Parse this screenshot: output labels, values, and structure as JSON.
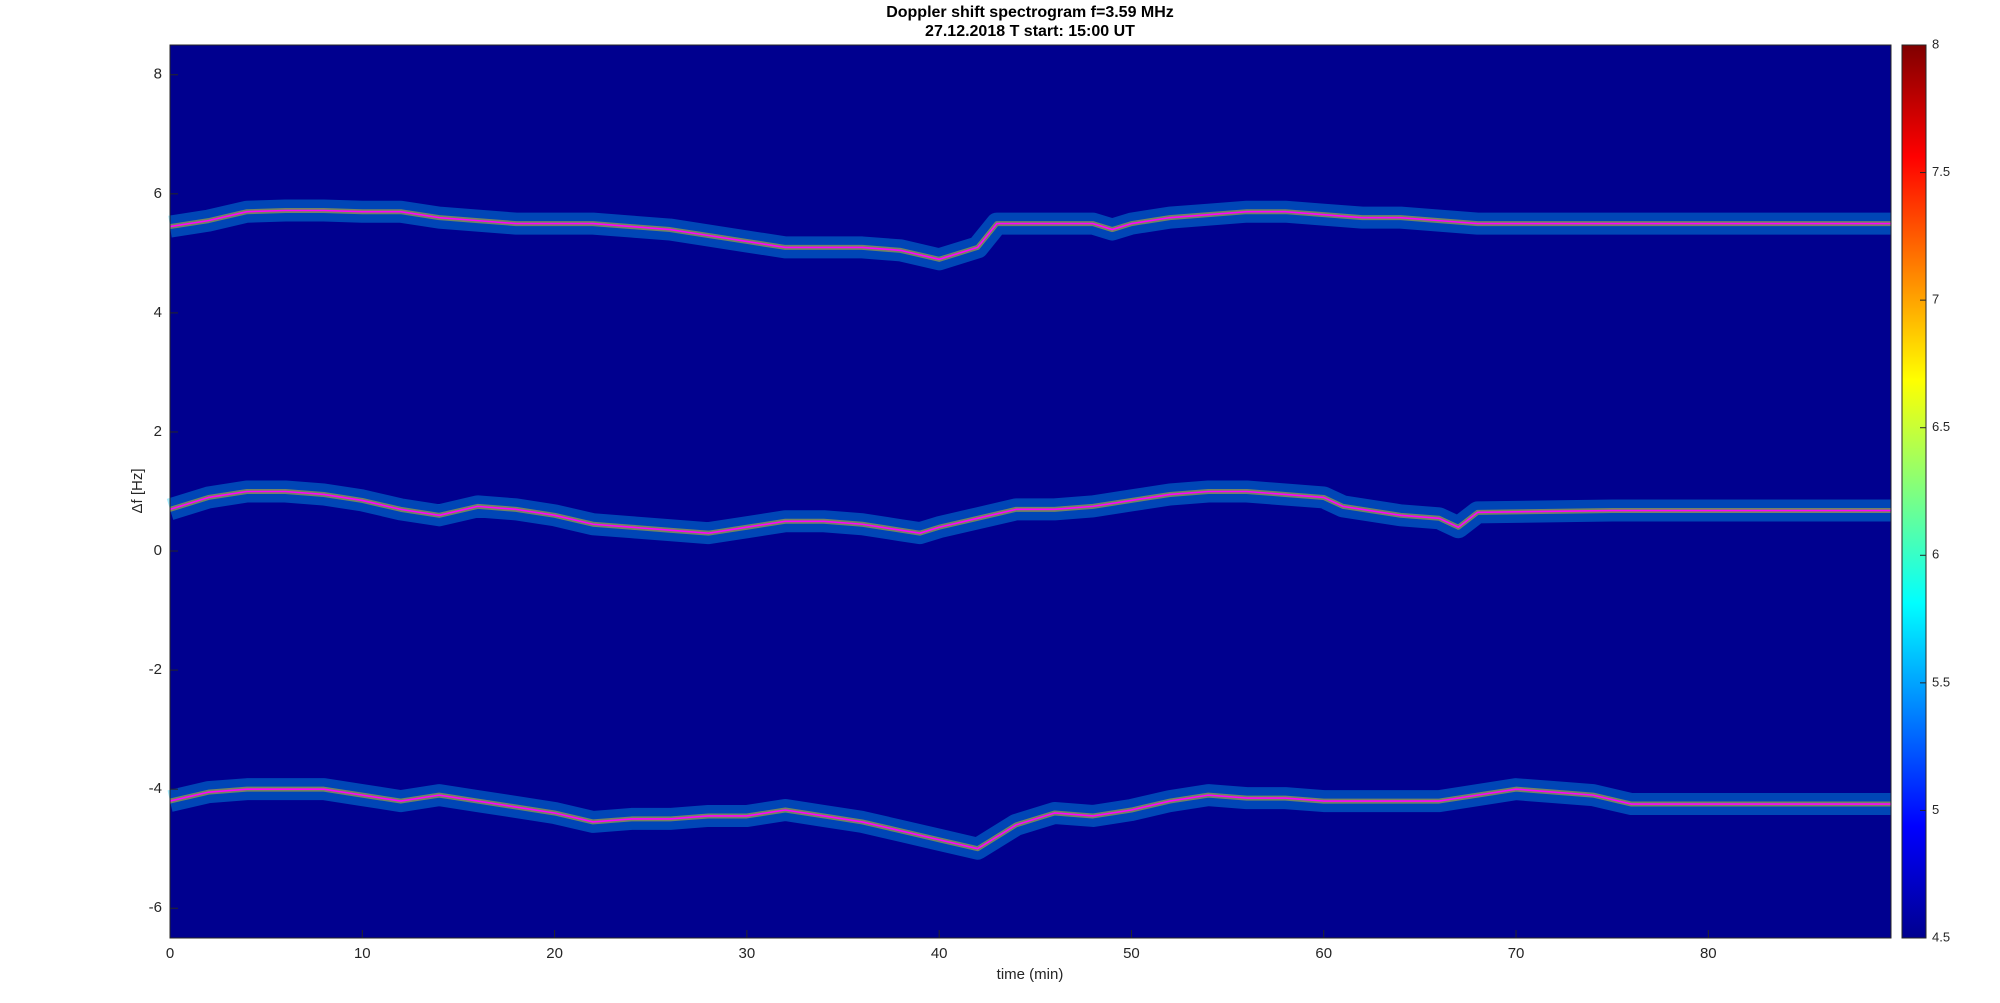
{
  "chart_data": {
    "type": "line",
    "title": "Doppler shift spectrogram f=3.59 MHz",
    "subtitle": "27.12.2018   T start: 15:00 UT",
    "x_label": "time (min)",
    "y_label": "Δf [Hz]",
    "xlim": [
      0,
      89.5
    ],
    "xticks": [
      0,
      10,
      20,
      30,
      40,
      50,
      60,
      70,
      80
    ],
    "ylim": [
      -6.5,
      8.5
    ],
    "yticks": [
      -6,
      -4,
      -2,
      0,
      2,
      4,
      6,
      8
    ],
    "background": "#00008f",
    "colorbar": {
      "lim": [
        4.5,
        8
      ],
      "ticks": [
        4.5,
        5,
        5.5,
        6,
        6.5,
        7,
        7.5,
        8
      ]
    },
    "series": [
      {
        "color": "#ff00ff",
        "x": [
          0,
          2,
          4,
          6,
          8,
          10,
          12,
          14,
          16,
          18,
          20,
          22,
          24,
          26,
          28,
          30,
          32,
          34,
          36,
          38,
          40,
          42,
          43,
          46,
          48,
          49,
          50,
          52,
          54,
          56,
          58,
          60,
          62,
          64,
          66,
          68,
          75,
          89.5
        ],
        "values": [
          5.45,
          5.55,
          5.7,
          5.72,
          5.72,
          5.7,
          5.7,
          5.6,
          5.55,
          5.5,
          5.5,
          5.5,
          5.45,
          5.4,
          5.3,
          5.2,
          5.1,
          5.1,
          5.1,
          5.05,
          4.9,
          5.1,
          5.5,
          5.5,
          5.5,
          5.4,
          5.5,
          5.6,
          5.65,
          5.7,
          5.7,
          5.65,
          5.6,
          5.6,
          5.55,
          5.5,
          5.5,
          5.5
        ]
      },
      {
        "color": "#ff00ff",
        "x": [
          0,
          2,
          4,
          6,
          8,
          10,
          12,
          14,
          16,
          18,
          20,
          22,
          24,
          26,
          28,
          30,
          32,
          34,
          36,
          38,
          39,
          40,
          42,
          44,
          46,
          48,
          50,
          52,
          54,
          56,
          58,
          60,
          61,
          64,
          66,
          67,
          68,
          75,
          89.5
        ],
        "values": [
          0.7,
          0.9,
          1.0,
          1.0,
          0.95,
          0.85,
          0.7,
          0.6,
          0.75,
          0.7,
          0.6,
          0.45,
          0.4,
          0.35,
          0.3,
          0.4,
          0.5,
          0.5,
          0.45,
          0.35,
          0.3,
          0.4,
          0.55,
          0.7,
          0.7,
          0.75,
          0.85,
          0.95,
          1.0,
          1.0,
          0.95,
          0.9,
          0.75,
          0.6,
          0.55,
          0.4,
          0.65,
          0.68,
          0.68
        ]
      },
      {
        "color": "#ff00ff",
        "x": [
          0,
          2,
          4,
          6,
          8,
          10,
          12,
          14,
          16,
          18,
          20,
          22,
          24,
          26,
          28,
          30,
          32,
          34,
          36,
          38,
          40,
          42,
          44,
          46,
          48,
          50,
          52,
          54,
          56,
          58,
          60,
          62,
          64,
          66,
          68,
          70,
          72,
          74,
          76,
          80,
          89.5
        ],
        "values": [
          -4.2,
          -4.05,
          -4.0,
          -4.0,
          -4.0,
          -4.1,
          -4.2,
          -4.1,
          -4.2,
          -4.3,
          -4.4,
          -4.55,
          -4.5,
          -4.5,
          -4.45,
          -4.45,
          -4.35,
          -4.45,
          -4.55,
          -4.7,
          -4.85,
          -5.0,
          -4.6,
          -4.4,
          -4.45,
          -4.35,
          -4.2,
          -4.1,
          -4.15,
          -4.15,
          -4.2,
          -4.2,
          -4.2,
          -4.2,
          -4.1,
          -4.0,
          -4.05,
          -4.1,
          -4.25,
          -4.25,
          -4.25
        ]
      }
    ]
  }
}
